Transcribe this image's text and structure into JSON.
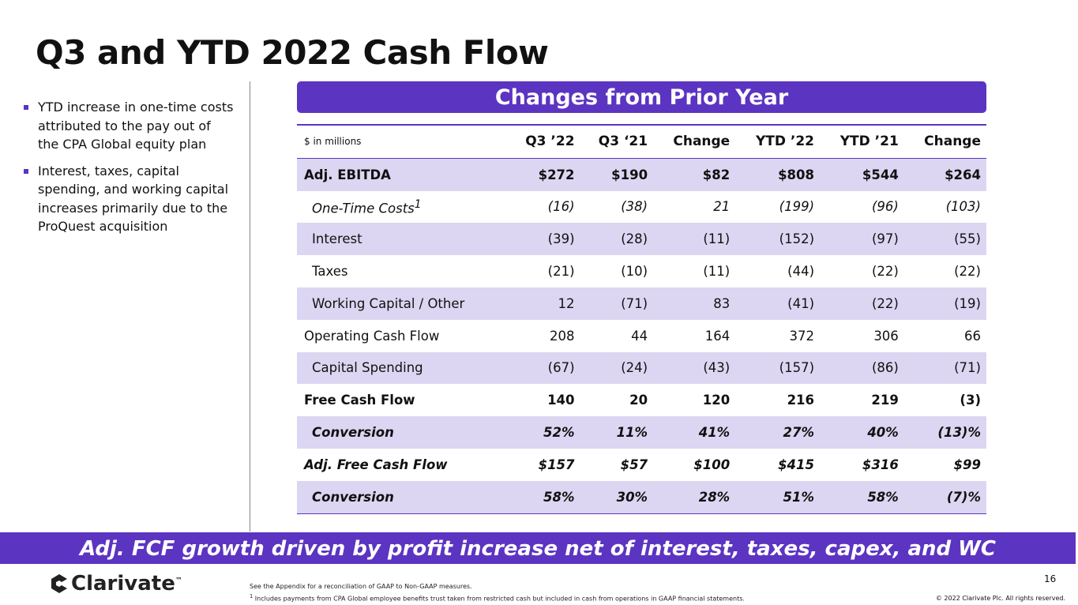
{
  "header": {
    "title": "Q3 and YTD 2022 Cash Flow"
  },
  "bullets": [
    "YTD increase in one-time costs attributed to the pay out of the CPA Global equity plan",
    "Interest, taxes, capital spending, and working capital increases primarily due to the ProQuest acquisition"
  ],
  "table": {
    "banner": "Changes from Prior Year",
    "columns": [
      "$ in millions",
      "Q3 ’22",
      "Q3 ‘21",
      "Change",
      "YTD ’22",
      "YTD ’21",
      "Change"
    ],
    "rows": [
      [
        "Adj. EBITDA",
        "$272",
        "$190",
        "$82",
        "$808",
        "$544",
        "$264"
      ],
      [
        "One-Time Costs",
        "(16)",
        "(38)",
        "21",
        "(199)",
        "(96)",
        "(103)"
      ],
      [
        "Interest",
        "(39)",
        "(28)",
        "(11)",
        "(152)",
        "(97)",
        "(55)"
      ],
      [
        "Taxes",
        "(21)",
        "(10)",
        "(11)",
        "(44)",
        "(22)",
        "(22)"
      ],
      [
        "Working Capital / Other",
        "12",
        "(71)",
        "83",
        "(41)",
        "(22)",
        "(19)"
      ],
      [
        "Operating Cash Flow",
        "208",
        "44",
        "164",
        "372",
        "306",
        "66"
      ],
      [
        "Capital Spending",
        "(67)",
        "(24)",
        "(43)",
        "(157)",
        "(86)",
        "(71)"
      ],
      [
        "Free Cash Flow",
        "140",
        "20",
        "120",
        "216",
        "219",
        "(3)"
      ],
      [
        "Conversion",
        "52%",
        "11%",
        "41%",
        "27%",
        "40%",
        "(13)%"
      ],
      [
        "Adj. Free Cash Flow",
        "$157",
        "$57",
        "$100",
        "$415",
        "$316",
        "$99"
      ],
      [
        "Conversion",
        "58%",
        "30%",
        "28%",
        "51%",
        "58%",
        "(7)%"
      ]
    ],
    "footnote_mark": "1"
  },
  "callout": "Adj. FCF growth driven by profit increase net of interest, taxes, capex, and WC",
  "footer": {
    "logo": "Clarivate",
    "trademark": "™",
    "notes": [
      "See the Appendix for a reconciliation of GAAP to Non-GAAP measures.",
      "Includes payments from CPA Global employee benefits trust taken from restricted cash but included in cash from operations in GAAP financial statements."
    ],
    "note_mark": "1",
    "page": "16",
    "copyright": "© 2022 Clarivate Plc. All rights reserved."
  }
}
